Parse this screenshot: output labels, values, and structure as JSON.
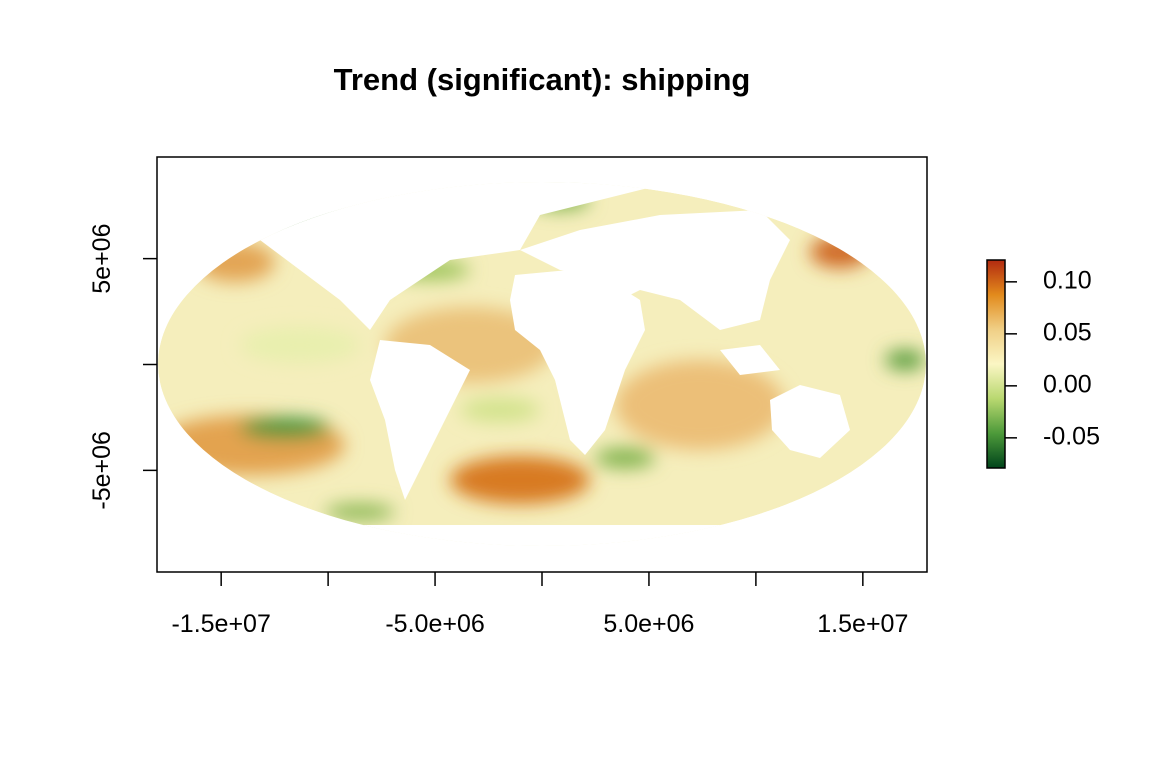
{
  "chart_data": {
    "type": "raster-map",
    "title": "Trend (significant): shipping",
    "xlim": [
      -18000000,
      18000000
    ],
    "ylim": [
      -9800000,
      9800000
    ],
    "xticks": [
      {
        "value": -15000000,
        "label": "-1.5e+07"
      },
      {
        "value": -10000000,
        "label": null
      },
      {
        "value": -5000000,
        "label": "-5.0e+06"
      },
      {
        "value": 0,
        "label": null
      },
      {
        "value": 5000000,
        "label": "5.0e+06"
      },
      {
        "value": 10000000,
        "label": null
      },
      {
        "value": 15000000,
        "label": "1.5e+07"
      }
    ],
    "yticks": [
      {
        "value": 5000000,
        "label": "5e+06"
      },
      {
        "value": 0,
        "label": null
      },
      {
        "value": -5000000,
        "label": "-5e+06"
      }
    ],
    "colorbar": {
      "lim": [
        -0.079,
        0.121
      ],
      "ticks": [
        {
          "value": 0.1,
          "label": "0.10"
        },
        {
          "value": 0.05,
          "label": "0.05"
        },
        {
          "value": 0,
          "label": "0.00"
        },
        {
          "value": -0.05,
          "label": "-0.05"
        }
      ],
      "colors": [
        "#00441b",
        "#4d9a3a",
        "#b9d870",
        "#fbf6c4",
        "#f0cf86",
        "#e28a1c",
        "#b22a10"
      ]
    }
  }
}
